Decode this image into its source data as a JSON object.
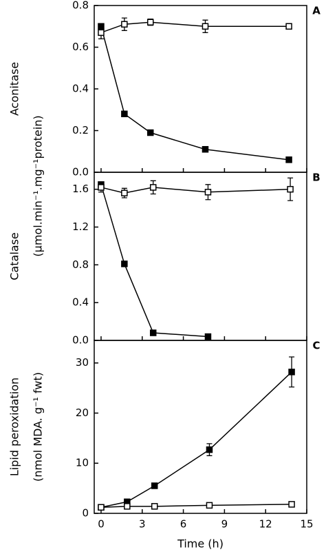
{
  "chart_data": [
    {
      "type": "line",
      "ylabel": "Aconitase",
      "panel_label": "A",
      "units_label": "(μmol.min⁻¹.mg⁻¹protein)",
      "xlim": [
        -0.5,
        15
      ],
      "ylim": [
        0,
        0.8
      ],
      "yticks": [
        {
          "value": 0,
          "label": "0.0"
        },
        0.2,
        0.4,
        0.6,
        0.8
      ],
      "series": [
        {
          "marker": "filled",
          "color": "#000000",
          "x": [
            0,
            1.7,
            3.6,
            7.6,
            13.7
          ],
          "values": [
            0.7,
            0.28,
            0.19,
            0.11,
            0.06
          ]
        },
        {
          "marker": "open",
          "color": "#000000",
          "x": [
            0,
            1.7,
            3.6,
            7.6,
            13.7
          ],
          "values": [
            0.67,
            0.71,
            0.72,
            0.7,
            0.7
          ],
          "errors": [
            0.03,
            0.03,
            0.015,
            0.03,
            0.01
          ]
        }
      ]
    },
    {
      "type": "line",
      "ylabel": "Catalase",
      "panel_label": "B",
      "xlim": [
        -0.5,
        15
      ],
      "ylim": [
        0,
        1.78
      ],
      "yticks": [
        {
          "value": 0,
          "label": "0.0"
        },
        0.4,
        0.8,
        1.2,
        1.6
      ],
      "series": [
        {
          "marker": "filled",
          "color": "#000000",
          "x": [
            0,
            1.7,
            3.8,
            7.8
          ],
          "values": [
            1.65,
            0.81,
            0.08,
            0.04
          ]
        },
        {
          "marker": "open",
          "color": "#000000",
          "x": [
            0,
            1.7,
            3.8,
            7.8,
            13.8
          ],
          "values": [
            1.62,
            1.56,
            1.62,
            1.57,
            1.6
          ],
          "errors": [
            0.05,
            0.05,
            0.07,
            0.08,
            0.12
          ]
        }
      ]
    },
    {
      "type": "line",
      "ylabel": "Lipid peroxidation",
      "panel_label": "C",
      "units_label": "(nmol MDA. g⁻¹ fwt)",
      "xlabel": "Time (h)",
      "xlim": [
        -0.5,
        15
      ],
      "ylim": [
        0,
        34.5
      ],
      "xticks": [
        0,
        3,
        6,
        9,
        12,
        15
      ],
      "yticks": [
        0,
        10,
        20,
        30
      ],
      "series": [
        {
          "marker": "filled",
          "color": "#000000",
          "x": [
            0,
            1.9,
            3.9,
            7.9,
            13.9
          ],
          "values": [
            1.2,
            2.3,
            5.5,
            12.7,
            28.2
          ],
          "errors": [
            0.5,
            0.5,
            0.5,
            1.2,
            3.0
          ]
        },
        {
          "marker": "open",
          "color": "#000000",
          "x": [
            0,
            1.9,
            3.9,
            7.9,
            13.9
          ],
          "values": [
            1.2,
            1.4,
            1.4,
            1.6,
            1.8
          ]
        }
      ]
    }
  ]
}
